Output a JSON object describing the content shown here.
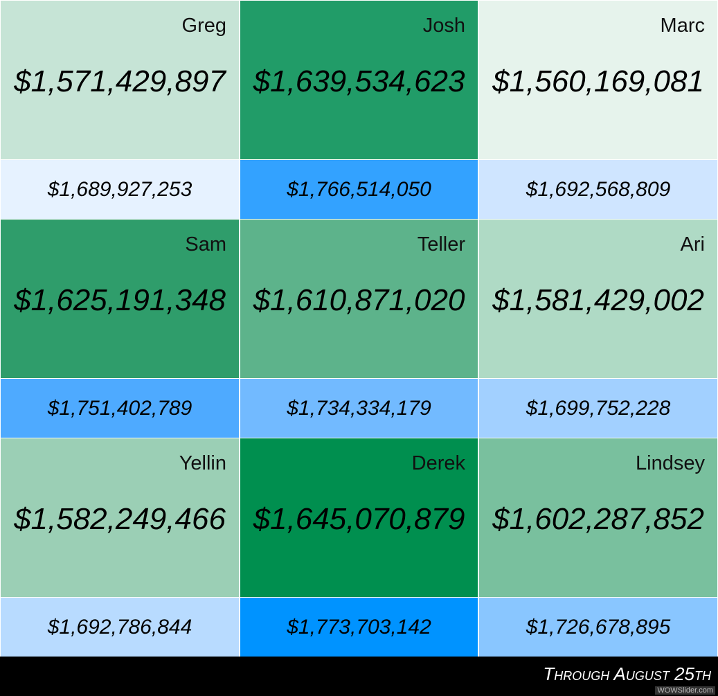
{
  "cells": [
    {
      "name": "Greg",
      "amount": "$1,571,429,897",
      "secondary": "$1,689,927,253",
      "color": "#c6e4d6",
      "secondary_color": "#e6f2ff"
    },
    {
      "name": "Josh",
      "amount": "$1,639,534,623",
      "secondary": "$1,766,514,050",
      "color": "#219c68",
      "secondary_color": "#33a2ff"
    },
    {
      "name": "Marc",
      "amount": "$1,560,169,081",
      "secondary": "$1,692,568,809",
      "color": "#e6f3ec",
      "secondary_color": "#cfe5ff"
    },
    {
      "name": "Sam",
      "amount": "$1,625,191,348",
      "secondary": "$1,751,402,789",
      "color": "#2f9d6b",
      "secondary_color": "#4eaaff"
    },
    {
      "name": "Teller",
      "amount": "$1,610,871,020",
      "secondary": "$1,734,334,179",
      "color": "#5db38b",
      "secondary_color": "#72baff"
    },
    {
      "name": "Ari",
      "amount": "$1,581,429,002",
      "secondary": "$1,699,752,228",
      "color": "#afdac5",
      "secondary_color": "#a2d0ff"
    },
    {
      "name": "Yellin",
      "amount": "$1,582,249,466",
      "secondary": "$1,692,786,844",
      "color": "#9bcfb5",
      "secondary_color": "#b8dbff"
    },
    {
      "name": "Derek",
      "amount": "$1,645,070,879",
      "secondary": "$1,773,703,142",
      "color": "#008f4f",
      "secondary_color": "#0093ff"
    },
    {
      "name": "Lindsey",
      "amount": "$1,602,287,852",
      "secondary": "$1,726,678,895",
      "color": "#79c09e",
      "secondary_color": "#89c6ff"
    }
  ],
  "footer": {
    "caption": "Through August 25th",
    "watermark": "WOWSlider.com"
  }
}
